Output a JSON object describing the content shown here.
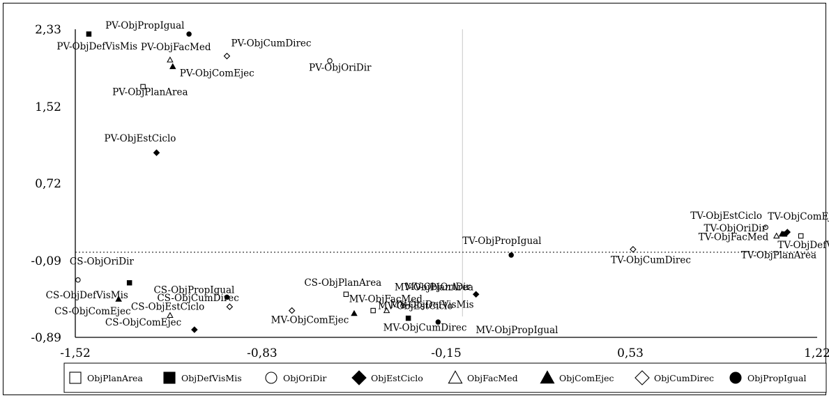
{
  "chart_data": {
    "type": "scatter",
    "title": "",
    "xlabel": "",
    "ylabel": "",
    "xlim": [
      -1.52,
      1.22
    ],
    "ylim": [
      -0.89,
      2.33
    ],
    "x_ticks": [
      "-1,52",
      "-0,83",
      "-0,15",
      "0,53",
      "1,22"
    ],
    "y_ticks": [
      "2,33",
      "1,52",
      "0,72",
      "-0,09",
      "-0,89"
    ],
    "x_tick_values": [
      -1.52,
      -0.83,
      -0.15,
      0.53,
      1.22
    ],
    "y_tick_values": [
      2.33,
      1.52,
      0.72,
      -0.09,
      -0.89
    ],
    "legend_position": "bottom",
    "legend": [
      {
        "name": "ObjPlanArea",
        "marker": "square-open"
      },
      {
        "name": "ObjDefVisMis",
        "marker": "square-filled"
      },
      {
        "name": "ObjOriDir",
        "marker": "circle-open"
      },
      {
        "name": "ObjEstCiclo",
        "marker": "diamond-filled"
      },
      {
        "name": "ObjFacMed",
        "marker": "triangle-open"
      },
      {
        "name": "ObjComEjec",
        "marker": "triangle-filled"
      },
      {
        "name": "ObjCumDirec",
        "marker": "diamond-open"
      },
      {
        "name": "ObjPropIgual",
        "marker": "circle-filled"
      }
    ],
    "points": [
      {
        "label": "PV-ObjPropIgual",
        "marker": "circle-filled",
        "x": -1.1,
        "y": 2.28
      },
      {
        "label": "PV-ObjDefVisMis",
        "marker": "square-filled",
        "x": -1.47,
        "y": 2.28
      },
      {
        "label": "PV-ObjFacMed",
        "marker": "triangle-open",
        "x": -1.17,
        "y": 2.01
      },
      {
        "label": "PV-ObjCumDirec",
        "marker": "diamond-open",
        "x": -0.96,
        "y": 2.05
      },
      {
        "label": "PV-ObjComEjec",
        "marker": "triangle-filled",
        "x": -1.16,
        "y": 1.94
      },
      {
        "label": "PV-ObjOriDir",
        "marker": "circle-open",
        "x": -0.58,
        "y": 2.0
      },
      {
        "label": "PV-ObjPlanArea",
        "marker": "square-open",
        "x": -1.27,
        "y": 1.73
      },
      {
        "label": "PV-ObjEstCiclo",
        "marker": "diamond-filled",
        "x": -1.22,
        "y": 1.04
      },
      {
        "label": "TV-ObjEstCiclo",
        "marker": "circle-open",
        "x": 1.03,
        "y": 0.26
      },
      {
        "label": "TV-ObjComEjec",
        "marker": "diamond-filled",
        "x": 1.11,
        "y": 0.21
      },
      {
        "label": "TV-ObjOriDir",
        "marker": "triangle-filled",
        "x": 1.09,
        "y": 0.19
      },
      {
        "label": "TV-ObjFacMed",
        "marker": "triangle-open",
        "x": 1.07,
        "y": 0.17
      },
      {
        "label": "TV-ObjDefVisMis",
        "marker": "square-filled",
        "x": 1.1,
        "y": 0.19
      },
      {
        "label": "TV-ObjPlanArea",
        "marker": "square-open",
        "x": 1.16,
        "y": 0.17
      },
      {
        "label": "TV-ObjCumDirec",
        "marker": "diamond-open",
        "x": 0.54,
        "y": 0.03
      },
      {
        "label": "TV-ObjPropIgual",
        "marker": "circle-filled",
        "x": 0.09,
        "y": -0.03
      },
      {
        "label": "CS-ObjOriDir",
        "marker": "circle-open",
        "x": -1.51,
        "y": -0.29
      },
      {
        "label": "CS-ObjDefVisMis",
        "marker": "square-filled",
        "x": -1.32,
        "y": -0.32
      },
      {
        "label": "CS-ObjPropIgual",
        "marker": "circle-filled",
        "x": -0.96,
        "y": -0.47
      },
      {
        "label": "CS-ObjComEjec",
        "marker": "triangle-filled",
        "x": -1.36,
        "y": -0.49
      },
      {
        "label": "CS-ObjCumDirec",
        "marker": "diamond-open",
        "x": -0.95,
        "y": -0.57
      },
      {
        "label": "CS-ObjEstCiclo",
        "marker": "triangle-open",
        "x": -1.17,
        "y": -0.66
      },
      {
        "label": "CS-ObjComEjec",
        "marker": "diamond-filled",
        "x": -1.08,
        "y": -0.81
      },
      {
        "label": "CS-ObjPlanArea",
        "marker": "square-open",
        "x": -0.52,
        "y": -0.44
      },
      {
        "label": "MV-ObjPlanArea",
        "marker": "circle-open",
        "x": -0.31,
        "y": -0.56
      },
      {
        "label": "MV-ObjFacMed",
        "marker": "triangle-open",
        "x": -0.37,
        "y": -0.61
      },
      {
        "label": "MV-ObjComEjec",
        "marker": "diamond-open",
        "x": -0.72,
        "y": -0.61
      },
      {
        "label": "MV-ObjCumDirec",
        "marker": "square-filled",
        "x": -0.29,
        "y": -0.69
      },
      {
        "label": "MV-ObjOriDir",
        "marker": "diamond-filled",
        "x": -0.04,
        "y": -0.44
      },
      {
        "label": "MV-ObjDefVisMis",
        "marker": "square-open",
        "x": -0.42,
        "y": -0.61
      },
      {
        "label": "MV-ObjPropIgual",
        "marker": "circle-filled",
        "x": -0.18,
        "y": -0.73
      },
      {
        "label": "MV-ObjEstCiclo",
        "marker": "triangle-filled",
        "x": -0.49,
        "y": -0.64
      }
    ]
  }
}
